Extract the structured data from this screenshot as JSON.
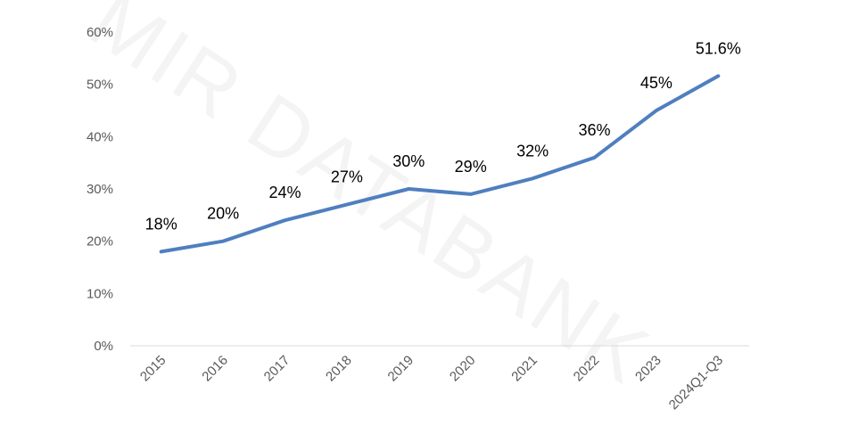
{
  "chart_data": {
    "type": "line",
    "categories": [
      "2015",
      "2016",
      "2017",
      "2018",
      "2019",
      "2020",
      "2021",
      "2022",
      "2023",
      "2024Q1-Q3"
    ],
    "series": [
      {
        "values": [
          18,
          20,
          24,
          27,
          30,
          29,
          32,
          36,
          45,
          51.6
        ],
        "data_labels": [
          "18%",
          "20%",
          "24%",
          "27%",
          "30%",
          "29%",
          "32%",
          "36%",
          "45%",
          "51.6%"
        ]
      }
    ],
    "y_tick_labels": [
      "0%",
      "10%",
      "20%",
      "30%",
      "40%",
      "50%",
      "60%"
    ],
    "ylim": [
      0,
      60
    ],
    "y_unit": "%",
    "grid": false,
    "legend": "none",
    "title": "",
    "xlabel": "",
    "ylabel": ""
  },
  "watermark": "MIR DATABANK",
  "colors": {
    "line": "#4f7fbf",
    "axis": "#d9d9d9",
    "tick_text": "#595959",
    "label_text": "#000000"
  }
}
